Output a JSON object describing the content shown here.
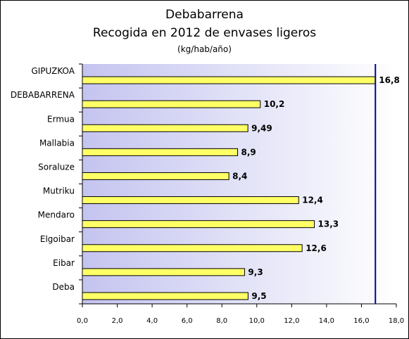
{
  "chart_data": {
    "type": "bar",
    "orientation": "horizontal",
    "title": [
      "Debabarrena",
      "Recogida en 2012 de envases ligeros"
    ],
    "subtitle": "(kg/hab/año)",
    "categories": [
      "GIPUZKOA",
      "DEBABARRENA",
      "Ermua",
      "Mallabia",
      "Soraluze",
      "Mutriku",
      "Mendaro",
      "Elgoibar",
      "Eibar",
      "Deba"
    ],
    "values": [
      16.8,
      10.2,
      9.49,
      8.9,
      8.4,
      12.4,
      13.3,
      12.6,
      9.3,
      9.5
    ],
    "value_labels": [
      "16,8",
      "10,2",
      "9,49",
      "8,9",
      "8,4",
      "12,4",
      "13,3",
      "12,6",
      "9,3",
      "9,5"
    ],
    "xlim": [
      0,
      18
    ],
    "xticks": [
      "0,0",
      "2,0",
      "4,0",
      "6,0",
      "8,0",
      "10,0",
      "12,0",
      "14,0",
      "16,0",
      "18,0"
    ],
    "reference_line": 16.8,
    "grid": false,
    "legend": "none",
    "colors": {
      "bar_fill": "#ffff66",
      "bar_edge": "#000000",
      "reference_line": "#000099",
      "plot_gradient_left": "#c4c4f0",
      "plot_gradient_right": "#ffffff"
    }
  }
}
